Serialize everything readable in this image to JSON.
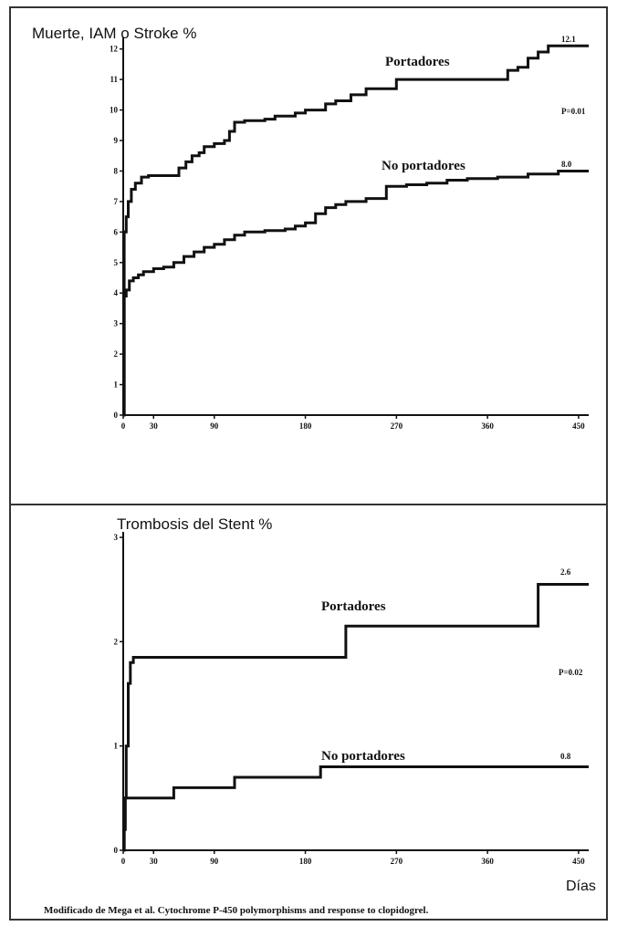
{
  "chart_data": [
    {
      "type": "line",
      "title": "Muerte, IAM o Stroke  %",
      "xlabel": "",
      "ylabel": "",
      "x_ticks": [
        0,
        30,
        90,
        180,
        270,
        360,
        450
      ],
      "y_ticks": [
        0,
        1,
        2,
        3,
        4,
        5,
        6,
        7,
        8,
        9,
        10,
        11,
        12
      ],
      "xlim": [
        0,
        460
      ],
      "ylim": [
        0,
        12.2
      ],
      "grid": false,
      "annotations": [
        "P=0.01"
      ],
      "series": [
        {
          "name": "Portadores",
          "end_label": "12.1",
          "x": [
            0,
            1,
            3,
            5,
            8,
            12,
            18,
            25,
            40,
            55,
            62,
            68,
            75,
            80,
            90,
            100,
            105,
            110,
            120,
            140,
            150,
            170,
            180,
            200,
            210,
            225,
            240,
            270,
            300,
            340,
            360,
            380,
            390,
            400,
            410,
            420,
            450,
            460
          ],
          "y": [
            0,
            6.0,
            6.5,
            7.0,
            7.4,
            7.6,
            7.8,
            7.85,
            7.85,
            8.1,
            8.3,
            8.5,
            8.6,
            8.8,
            8.9,
            9.0,
            9.3,
            9.6,
            9.65,
            9.7,
            9.8,
            9.9,
            10.0,
            10.2,
            10.3,
            10.5,
            10.7,
            11.0,
            11.0,
            11.0,
            11.0,
            11.3,
            11.4,
            11.7,
            11.9,
            12.1,
            12.1,
            12.1
          ]
        },
        {
          "name": "No portadores",
          "end_label": "8.0",
          "x": [
            0,
            1,
            3,
            6,
            10,
            15,
            20,
            30,
            40,
            50,
            60,
            70,
            80,
            90,
            100,
            110,
            120,
            140,
            160,
            170,
            180,
            190,
            200,
            210,
            220,
            240,
            260,
            280,
            300,
            320,
            340,
            370,
            400,
            430,
            460
          ],
          "y": [
            0,
            3.9,
            4.1,
            4.4,
            4.5,
            4.6,
            4.7,
            4.8,
            4.85,
            5.0,
            5.2,
            5.35,
            5.5,
            5.6,
            5.75,
            5.9,
            6.0,
            6.05,
            6.1,
            6.2,
            6.3,
            6.6,
            6.8,
            6.9,
            7.0,
            7.1,
            7.5,
            7.55,
            7.6,
            7.7,
            7.75,
            7.8,
            7.9,
            8.0,
            8.0
          ]
        }
      ]
    },
    {
      "type": "line",
      "title": "Trombosis del Stent  %",
      "xlabel": "Días",
      "ylabel": "",
      "x_ticks": [
        0,
        30,
        90,
        180,
        270,
        360,
        450
      ],
      "y_ticks": [
        0,
        1,
        2,
        3
      ],
      "xlim": [
        0,
        460
      ],
      "ylim": [
        0,
        3
      ],
      "grid": false,
      "annotations": [
        "P=0.02"
      ],
      "series": [
        {
          "name": "Portadores",
          "end_label": "2.6",
          "x": [
            0,
            1,
            2,
            3,
            5,
            7,
            10,
            20,
            100,
            150,
            200,
            220,
            250,
            300,
            350,
            400,
            410,
            430,
            460
          ],
          "y": [
            0,
            0.2,
            0.5,
            1.0,
            1.6,
            1.8,
            1.85,
            1.85,
            1.85,
            1.85,
            1.85,
            2.15,
            2.15,
            2.15,
            2.15,
            2.15,
            2.55,
            2.55,
            2.55
          ]
        },
        {
          "name": "No portadores",
          "end_label": "0.8",
          "x": [
            0,
            1,
            2,
            5,
            10,
            20,
            30,
            50,
            80,
            100,
            110,
            130,
            160,
            180,
            195,
            250,
            300,
            400,
            460
          ],
          "y": [
            0,
            0.2,
            0.5,
            0.5,
            0.5,
            0.5,
            0.5,
            0.6,
            0.6,
            0.6,
            0.7,
            0.7,
            0.7,
            0.7,
            0.8,
            0.8,
            0.8,
            0.8,
            0.8
          ]
        }
      ]
    }
  ],
  "caption": "Modificado de Mega et al. Cytochrome P-450 polymorphisms and response to clopidogrel."
}
